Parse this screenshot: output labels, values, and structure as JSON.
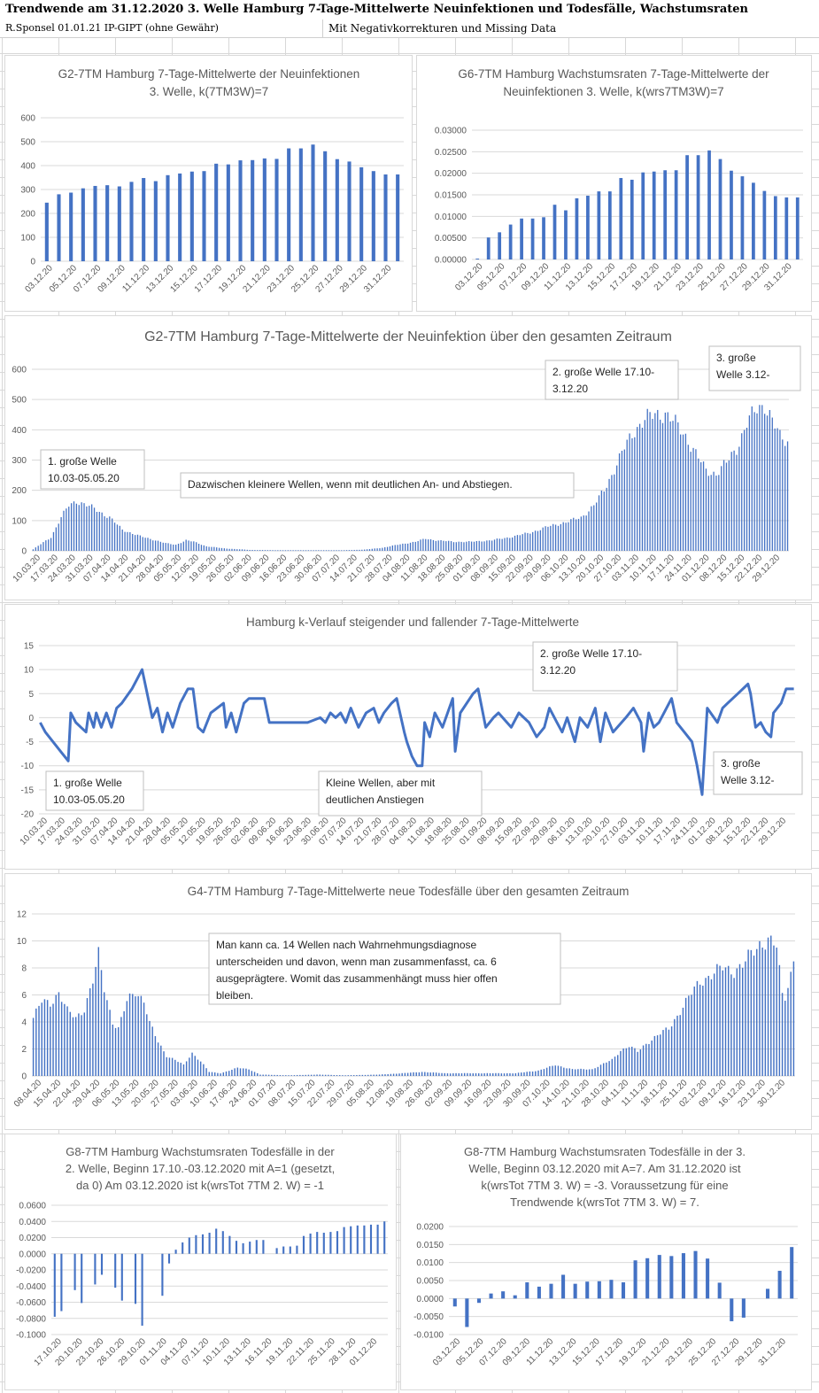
{
  "header": {
    "title": "Trendwende am 31.12.2020  3. Welle Hamburg 7-Tage-Mittelwerte Neuinfektionen und Todesfälle, Wachstumsraten",
    "credit": "R.Sponsel 01.01.21 IP-GIPT (ohne Gewähr)",
    "note": "Mit Negativkorrekturen und Missing Data"
  },
  "colors": {
    "bar": "#4472c4",
    "line": "#4472c4",
    "grid": "#d9d9d9",
    "axis_text": "#595959",
    "title": "#595959"
  },
  "chart_data": [
    {
      "id": "g2_3w",
      "type": "bar",
      "title": "G2-7TM Hamburg 7-Tage-Mittelwerte der Neuinfektionen 3. Welle, k(7TM3W)=7",
      "ylim": [
        0,
        600
      ],
      "yticks": [
        "0",
        "100",
        "200",
        "300",
        "400",
        "500",
        "600"
      ],
      "xticks": [
        "03.12.20",
        "05.12.20",
        "07.12.20",
        "09.12.20",
        "11.12.20",
        "13.12.20",
        "15.12.20",
        "17.12.20",
        "19.12.20",
        "21.12.20",
        "23.12.20",
        "25.12.20",
        "27.12.20",
        "29.12.20",
        "31.12.20"
      ],
      "values": [
        245,
        280,
        287,
        305,
        315,
        318,
        313,
        332,
        348,
        335,
        360,
        367,
        375,
        377,
        408,
        405,
        422,
        423,
        430,
        428,
        472,
        472,
        488,
        460,
        427,
        417,
        393,
        377,
        363,
        363
      ]
    },
    {
      "id": "g6_3w",
      "type": "bar",
      "title": "G6-7TM Hamburg Wachstumsraten 7-Tage-Mittelwerte der Neuinfektionen 3. Welle, k(wrs7TM3W)=7",
      "ylim": [
        0,
        0.03
      ],
      "yticks": [
        "0.00000",
        "0.00500",
        "0.01000",
        "0.01500",
        "0.02000",
        "0.02500",
        "0.03000"
      ],
      "xticks": [
        "03.12.20",
        "05.12.20",
        "07.12.20",
        "09.12.20",
        "11.12.20",
        "13.12.20",
        "15.12.20",
        "17.12.20",
        "19.12.20",
        "21.12.20",
        "23.12.20",
        "25.12.20",
        "27.12.20",
        "29.12.20",
        "31.12.20"
      ],
      "values": [
        0.0002,
        0.0051,
        0.0063,
        0.0081,
        0.0095,
        0.0095,
        0.0098,
        0.0127,
        0.0114,
        0.0142,
        0.0148,
        0.0158,
        0.0158,
        0.0189,
        0.0185,
        0.0202,
        0.0204,
        0.0207,
        0.0207,
        0.0242,
        0.0242,
        0.0253,
        0.0233,
        0.0206,
        0.0193,
        0.0178,
        0.0159,
        0.0147,
        0.0144,
        0.0144
      ]
    },
    {
      "id": "g2_all",
      "type": "bar",
      "title": "G2-7TM Hamburg 7-Tage-Mittelwerte der Neuinfektion über den gesamten Zeitraum",
      "ylim": [
        0,
        600
      ],
      "yticks": [
        "0",
        "100",
        "200",
        "300",
        "400",
        "500",
        "600"
      ],
      "xticks": [
        "10.03.20",
        "17.03.20",
        "24.03.20",
        "31.03.20",
        "07.04.20",
        "14.04.20",
        "21.04.20",
        "28.04.20",
        "05.05.20",
        "12.05.20",
        "19.05.20",
        "26.05.20",
        "02.06.20",
        "09.06.20",
        "16.06.20",
        "23.06.20",
        "30.06.20",
        "07.07.20",
        "14.07.20",
        "21.07.20",
        "28.07.20",
        "04.08.20",
        "11.08.20",
        "18.08.20",
        "25.08.20",
        "01.09.20",
        "08.09.20",
        "15.09.20",
        "22.09.20",
        "29.09.20",
        "06.10.20",
        "13.10.20",
        "20.10.20",
        "27.10.20",
        "03.11.20",
        "10.11.20",
        "17.11.20",
        "24.11.20",
        "01.12.20",
        "08.12.20",
        "15.12.20",
        "22.12.20",
        "29.12.20"
      ],
      "start": "10.03.20",
      "anchors": [
        [
          0,
          5
        ],
        [
          7,
          45
        ],
        [
          11,
          110
        ],
        [
          14,
          150
        ],
        [
          17,
          165
        ],
        [
          21,
          150
        ],
        [
          24,
          140
        ],
        [
          30,
          110
        ],
        [
          35,
          70
        ],
        [
          42,
          48
        ],
        [
          48,
          35
        ],
        [
          52,
          25
        ],
        [
          56,
          20
        ],
        [
          60,
          35
        ],
        [
          63,
          30
        ],
        [
          68,
          15
        ],
        [
          75,
          8
        ],
        [
          85,
          3
        ],
        [
          95,
          2
        ],
        [
          110,
          2
        ],
        [
          122,
          2
        ],
        [
          130,
          4
        ],
        [
          137,
          10
        ],
        [
          143,
          20
        ],
        [
          150,
          30
        ],
        [
          154,
          40
        ],
        [
          158,
          35
        ],
        [
          165,
          30
        ],
        [
          172,
          30
        ],
        [
          180,
          35
        ],
        [
          187,
          45
        ],
        [
          195,
          60
        ],
        [
          202,
          80
        ],
        [
          209,
          95
        ],
        [
          215,
          110
        ],
        [
          220,
          150
        ],
        [
          224,
          200
        ],
        [
          228,
          270
        ],
        [
          232,
          340
        ],
        [
          236,
          400
        ],
        [
          240,
          435
        ],
        [
          244,
          450
        ],
        [
          248,
          455
        ],
        [
          252,
          420
        ],
        [
          256,
          380
        ],
        [
          260,
          320
        ],
        [
          264,
          265
        ],
        [
          268,
          255
        ],
        [
          272,
          290
        ],
        [
          276,
          340
        ],
        [
          280,
          420
        ],
        [
          284,
          470
        ],
        [
          287,
          485
        ],
        [
          290,
          430
        ],
        [
          293,
          375
        ],
        [
          296,
          363
        ]
      ],
      "annotations": [
        "1. große Welle 10.03-05.05.20",
        "Dazwischen kleinere Wellen, wenn mit deutlichen An- und Abstiegen.",
        "2. große Welle 17.10-3.12.20",
        "3. große Welle 3.12-"
      ]
    },
    {
      "id": "k_line",
      "type": "line",
      "title": "Hamburg k-Verlauf steigender und fallender 7-Tage-Mittelwerte",
      "ylim": [
        -20,
        15
      ],
      "yticks": [
        "-20",
        "-15",
        "-10",
        "-5",
        "0",
        "5",
        "10",
        "15"
      ],
      "xticks": [
        "10.03.20",
        "17.03.20",
        "24.03.20",
        "31.03.20",
        "07.04.20",
        "14.04.20",
        "21.04.20",
        "28.04.20",
        "05.05.20",
        "12.05.20",
        "19.05.20",
        "26.05.20",
        "02.06.20",
        "09.06.20",
        "16.06.20",
        "23.06.20",
        "30.06.20",
        "07.07.20",
        "14.07.20",
        "21.07.20",
        "28.07.20",
        "04.08.20",
        "11.08.20",
        "18.08.20",
        "25.08.20",
        "01.09.20",
        "08.09.20",
        "15.09.20",
        "22.09.20",
        "29.09.20",
        "06.10.20",
        "13.10.20",
        "20.10.20",
        "27.10.20",
        "03.11.20",
        "10.11.20",
        "17.11.20",
        "24.11.20",
        "01.12.20",
        "08.12.20",
        "15.12.20",
        "22.12.20",
        "29.12.20"
      ],
      "x": [
        0,
        2,
        5,
        8,
        11,
        12,
        14,
        16,
        18,
        19,
        21,
        22,
        24,
        26,
        28,
        30,
        32,
        36,
        40,
        44,
        46,
        48,
        50,
        52,
        55,
        58,
        60,
        62,
        64,
        67,
        72,
        73,
        75,
        77,
        80,
        82,
        85,
        88,
        90,
        95,
        100,
        105,
        110,
        112,
        114,
        116,
        118,
        120,
        122,
        125,
        128,
        131,
        133,
        135,
        138,
        140,
        143,
        144,
        146,
        148,
        150,
        151,
        153,
        155,
        158,
        162,
        163,
        165,
        170,
        172,
        175,
        178,
        180,
        185,
        188,
        192,
        195,
        198,
        200,
        203,
        205,
        207,
        210,
        212,
        215,
        218,
        220,
        222,
        225,
        230,
        233,
        236,
        237,
        239,
        241,
        243,
        246,
        248,
        250,
        253,
        256,
        258,
        260,
        262,
        266,
        268,
        270,
        274,
        278,
        279,
        281,
        283,
        285,
        287,
        288,
        291,
        293,
        296
      ],
      "y": [
        -1,
        -3,
        -5,
        -7,
        -9,
        1,
        -1,
        -2,
        -3,
        1,
        -2,
        1,
        -2,
        1,
        -2,
        2,
        3,
        6,
        10,
        0,
        2,
        -3,
        1,
        -2,
        3,
        6,
        6,
        -2,
        -3,
        1,
        3,
        -2,
        1,
        -3,
        3,
        4,
        4,
        4,
        -1,
        -1,
        -1,
        -1,
        0,
        -1,
        1,
        0,
        1,
        -1,
        2,
        -2,
        1,
        2,
        -1,
        1,
        3,
        4,
        -3,
        -5,
        -8,
        -10,
        -10,
        -1,
        -4,
        1,
        -2,
        4,
        -7,
        1,
        5,
        6,
        -2,
        0,
        1,
        -2,
        1,
        -1,
        -4,
        -2,
        2,
        -1,
        -3,
        0,
        -5,
        0,
        -2,
        2,
        -5,
        1,
        -3,
        0,
        2,
        -1,
        -7,
        1,
        -2,
        -1,
        2,
        4,
        -1,
        -3,
        -5,
        -10,
        -16,
        2,
        -1,
        2,
        3,
        5,
        7,
        5,
        -2,
        -1,
        -3,
        -4,
        1,
        3,
        6,
        6
      ],
      "annotations": [
        "2. große Welle 17.10-3.12.20",
        "1. große Welle 10.03-05.05.20",
        "Kleine Wellen, aber mit deutlichen Anstiegen",
        "3. große Welle 3.12-"
      ]
    },
    {
      "id": "g4_tod",
      "type": "bar",
      "title": "G4-7TM Hamburg 7-Tage-Mittelwerte neue Todesfälle über den gesamten Zeitraum",
      "ylim": [
        0,
        12
      ],
      "yticks": [
        "0",
        "2",
        "4",
        "6",
        "8",
        "10",
        "12"
      ],
      "xticks": [
        "08.04.20",
        "15.04.20",
        "22.04.20",
        "29.04.20",
        "06.05.20",
        "13.05.20",
        "20.05.20",
        "27.05.20",
        "03.06.20",
        "10.06.20",
        "17.06.20",
        "24.06.20",
        "01.07.20",
        "08.07.20",
        "15.07.20",
        "22.07.20",
        "29.07.20",
        "05.08.20",
        "12.08.20",
        "19.08.20",
        "26.08.20",
        "02.09.20",
        "09.09.20",
        "16.09.20",
        "23.09.20",
        "30.09.20",
        "07.10.20",
        "14.10.20",
        "21.10.20",
        "28.10.20",
        "04.11.20",
        "11.11.20",
        "18.11.20",
        "25.11.20",
        "02.12.20",
        "09.12.20",
        "16.12.20",
        "23.12.20",
        "30.12.20"
      ],
      "start": "08.04.20",
      "anchors": [
        [
          0,
          4.3
        ],
        [
          3,
          5.5
        ],
        [
          6,
          5.4
        ],
        [
          9,
          6.2
        ],
        [
          12,
          4.8
        ],
        [
          15,
          4.3
        ],
        [
          18,
          5.0
        ],
        [
          21,
          7.0
        ],
        [
          23,
          8.9
        ],
        [
          25,
          6.5
        ],
        [
          28,
          4.0
        ],
        [
          30,
          3.5
        ],
        [
          33,
          5.5
        ],
        [
          36,
          6.3
        ],
        [
          39,
          5.6
        ],
        [
          41,
          3.9
        ],
        [
          44,
          2.5
        ],
        [
          47,
          1.5
        ],
        [
          50,
          1.2
        ],
        [
          53,
          0.8
        ],
        [
          56,
          1.7
        ],
        [
          59,
          1.1
        ],
        [
          62,
          0.3
        ],
        [
          66,
          0.2
        ],
        [
          72,
          0.6
        ],
        [
          76,
          0.5
        ],
        [
          80,
          0.1
        ],
        [
          90,
          0.05
        ],
        [
          100,
          0.1
        ],
        [
          110,
          0.05
        ],
        [
          122,
          0.1
        ],
        [
          130,
          0.2
        ],
        [
          137,
          0.3
        ],
        [
          145,
          0.2
        ],
        [
          155,
          0.2
        ],
        [
          163,
          0.2
        ],
        [
          170,
          0.2
        ],
        [
          178,
          0.4
        ],
        [
          184,
          0.8
        ],
        [
          190,
          0.5
        ],
        [
          197,
          0.5
        ],
        [
          204,
          1.2
        ],
        [
          207,
          1.9
        ],
        [
          210,
          2.2
        ],
        [
          213,
          1.8
        ],
        [
          216,
          2.4
        ],
        [
          220,
          3.0
        ],
        [
          224,
          3.5
        ],
        [
          227,
          4.5
        ],
        [
          231,
          5.8
        ],
        [
          235,
          7.0
        ],
        [
          239,
          7.5
        ],
        [
          243,
          8.0
        ],
        [
          247,
          7.8
        ],
        [
          250,
          8.2
        ],
        [
          253,
          9.0
        ],
        [
          256,
          9.8
        ],
        [
          259,
          10.1
        ],
        [
          262,
          9.5
        ],
        [
          264,
          6.0
        ],
        [
          265,
          5.9
        ],
        [
          267,
          7.6
        ],
        [
          268,
          8.7
        ]
      ],
      "annotations": [
        "Man kann ca. 14 Wellen nach Wahrnehmungsdiagnose unterscheiden und davon, wenn man zusammenfasst,  ca. 6 ausgeprägtere. Womit das zusammenhängt muss hier offen bleiben."
      ]
    },
    {
      "id": "g8_2w",
      "type": "bar",
      "title": "G8-7TM Hamburg Wachstumsraten Todesfälle in der 2. Welle, Beginn 17.10.-03.12.2020 mit A=1 (gesetzt, da 0)  Am 03.12.2020 ist k(wrsTot 7TM 2. W) = -1",
      "ylim": [
        -0.1,
        0.06
      ],
      "yticks": [
        "-0.1000",
        "-0.0800",
        "-0.0600",
        "-0.0400",
        "-0.0200",
        "0.0000",
        "0.0200",
        "0.0400",
        "0.0600"
      ],
      "xticks": [
        "17.10.20",
        "20.10.20",
        "23.10.20",
        "26.10.20",
        "29.10.20",
        "01.11.20",
        "04.11.20",
        "07.11.20",
        "10.11.20",
        "13.11.20",
        "16.11.20",
        "19.11.20",
        "22.11.20",
        "25.11.20",
        "28.11.20",
        "01.12.20"
      ],
      "values": [
        -0.078,
        -0.071,
        0,
        -0.045,
        -0.061,
        0,
        -0.038,
        -0.026,
        0,
        -0.042,
        -0.058,
        0,
        -0.062,
        -0.089,
        0,
        0,
        -0.052,
        -0.012,
        0.005,
        0.014,
        0.02,
        0.023,
        0.024,
        0.026,
        0.031,
        0.028,
        0.022,
        0.016,
        0.013,
        0.015,
        0.017,
        0.017,
        0,
        0.007,
        0.009,
        0.009,
        0.01,
        0.022,
        0.025,
        0.027,
        0.026,
        0.027,
        0.028,
        0.033,
        0.034,
        0.035,
        0.035,
        0.036,
        0.036,
        0.04
      ]
    },
    {
      "id": "g8_3w",
      "type": "bar",
      "title": "G8-7TM Hamburg Wachstumsraten Todesfälle in der 3. Welle, Beginn 03.12.2020 mit A=7. Am 31.12.2020 ist k(wrsTot 7TM 3. W) = -3. Voraussetzung für eine Trendwende k(wrsTot 7TM 3. W) = 7.",
      "ylim": [
        -0.01,
        0.02
      ],
      "yticks": [
        "-0.0100",
        "-0.0050",
        "0.0000",
        "0.0050",
        "0.0100",
        "0.0150",
        "0.0200"
      ],
      "xticks": [
        "03.12.20",
        "05.12.20",
        "07.12.20",
        "09.12.20",
        "11.12.20",
        "13.12.20",
        "15.12.20",
        "17.12.20",
        "19.12.20",
        "21.12.20",
        "23.12.20",
        "25.12.20",
        "27.12.20",
        "29.12.20",
        "31.12.20"
      ],
      "values": [
        -0.0022,
        -0.0079,
        -0.0012,
        0.0014,
        0.002,
        0.0009,
        0.0045,
        0.0033,
        0.0041,
        0.0066,
        0.0041,
        0.0047,
        0.0048,
        0.0052,
        0.0045,
        0.0106,
        0.0112,
        0.0121,
        0.0118,
        0.0126,
        0.0132,
        0.0111,
        0.0044,
        -0.0063,
        -0.0053,
        0,
        0.0027,
        0.0077,
        0.0143
      ]
    }
  ]
}
